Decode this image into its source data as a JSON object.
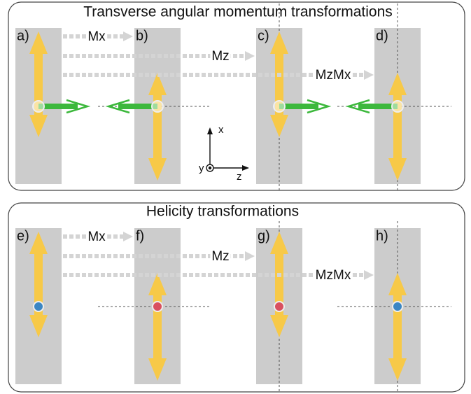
{
  "sections": [
    {
      "title": "Transverse angular momentum transformations",
      "panels": [
        "a)",
        "b)",
        "c)",
        "d)"
      ],
      "operations": [
        "Mx",
        "Mz",
        "MzMx"
      ]
    },
    {
      "title": "Helicity transformations",
      "panels": [
        "e)",
        "f)",
        "g)",
        "h)"
      ],
      "operations": [
        "Mx",
        "Mz",
        "MzMx"
      ]
    }
  ],
  "axes": {
    "x": "x",
    "y": "y",
    "z": "z"
  }
}
